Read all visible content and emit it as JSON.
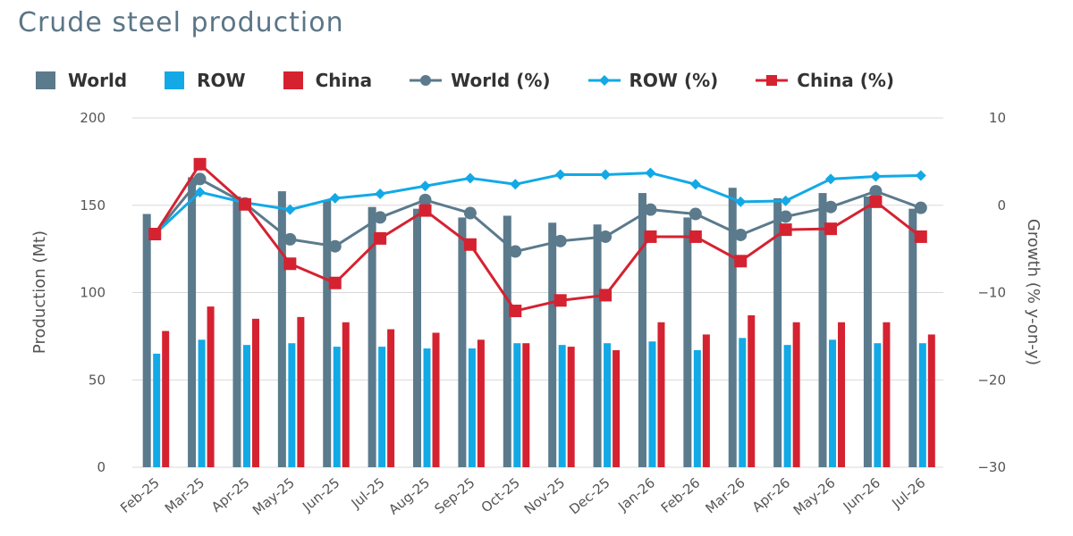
{
  "chart_data": {
    "type": "bar",
    "title": "Crude steel production",
    "categories": [
      "Feb-25",
      "Mar-25",
      "Apr-25",
      "May-25",
      "Jun-25",
      "Jul-25",
      "Aug-25",
      "Sep-25",
      "Oct-25",
      "Nov-25",
      "Dec-25",
      "Jan-26",
      "Feb-26",
      "Mar-26",
      "Apr-26",
      "May-26",
      "Jun-26",
      "Jul-26"
    ],
    "ylabel": "Production (Mt)",
    "y2label": "Growth (% y-on-y)",
    "ylim": [
      0,
      200
    ],
    "y2lim": [
      -30,
      10
    ],
    "yticks": [
      "0",
      "50",
      "100",
      "150",
      "200"
    ],
    "y2ticks": [
      "−30",
      "−20",
      "−10",
      "0",
      "10"
    ],
    "grid": true,
    "legend_position": "top-left",
    "series": [
      {
        "name": "World",
        "kind": "bar",
        "axis": "left",
        "color": "#5b7a8c",
        "values": [
          145,
          166,
          155,
          158,
          153,
          149,
          148,
          143,
          144,
          140,
          139,
          157,
          143,
          160,
          154,
          157,
          155,
          148
        ]
      },
      {
        "name": "ROW",
        "kind": "bar",
        "axis": "left",
        "color": "#12a9e6",
        "values": [
          65,
          73,
          70,
          71,
          69,
          69,
          68,
          68,
          71,
          70,
          71,
          72,
          67,
          74,
          70,
          73,
          71,
          71
        ]
      },
      {
        "name": "China",
        "kind": "bar",
        "axis": "left",
        "color": "#d52231",
        "values": [
          78,
          92,
          85,
          86,
          83,
          79,
          77,
          73,
          71,
          69,
          67,
          83,
          76,
          87,
          83,
          83,
          83,
          76
        ]
      },
      {
        "name": "World (%)",
        "kind": "line",
        "axis": "right",
        "marker": "circle",
        "color": "#5b7a8c",
        "values": [
          -3.3,
          3.0,
          0.2,
          -3.9,
          -4.7,
          -1.4,
          0.6,
          -0.9,
          -5.3,
          -4.1,
          -3.6,
          -0.5,
          -1.0,
          -3.4,
          -1.3,
          -0.2,
          1.6,
          -0.3
        ]
      },
      {
        "name": "ROW (%)",
        "kind": "line",
        "axis": "right",
        "marker": "diamond",
        "color": "#12a9e6",
        "values": [
          -3.3,
          1.5,
          0.3,
          -0.5,
          0.8,
          1.3,
          2.2,
          3.1,
          2.4,
          3.5,
          3.5,
          3.7,
          2.4,
          0.4,
          0.5,
          3.0,
          3.3,
          3.4
        ]
      },
      {
        "name": "China (%)",
        "kind": "line",
        "axis": "right",
        "marker": "square",
        "color": "#d52231",
        "values": [
          -3.3,
          4.7,
          0.1,
          -6.7,
          -8.9,
          -3.8,
          -0.6,
          -4.5,
          -12.1,
          -10.9,
          -10.3,
          -3.6,
          -3.6,
          -6.4,
          -2.8,
          -2.7,
          0.4,
          -3.6
        ]
      }
    ]
  }
}
